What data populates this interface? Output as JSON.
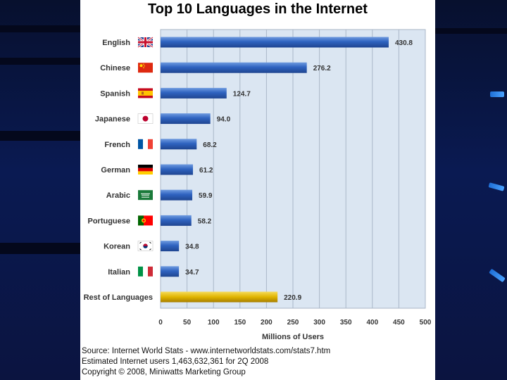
{
  "colors": {
    "bar": "#2f63c0",
    "rest_bar": "#e0b400",
    "plot_bg": "#dbe6f2"
  },
  "chart_data": {
    "type": "bar",
    "orientation": "horizontal",
    "title": "Top 10 Languages in the Internet",
    "xlabel": "Millions of Users",
    "xlim": [
      0,
      500
    ],
    "xticks": [
      0,
      50,
      100,
      150,
      200,
      250,
      300,
      350,
      400,
      450,
      500
    ],
    "grid": true,
    "categories": [
      "English",
      "Chinese",
      "Spanish",
      "Japanese",
      "French",
      "German",
      "Arabic",
      "Portuguese",
      "Korean",
      "Italian",
      "Rest of Languages"
    ],
    "flag_icons": [
      "uk-flag-icon",
      "china-flag-icon",
      "spain-flag-icon",
      "japan-flag-icon",
      "france-flag-icon",
      "germany-flag-icon",
      "saudi-flag-icon",
      "portugal-flag-icon",
      "korea-flag-icon",
      "italy-flag-icon",
      ""
    ],
    "values": [
      430.8,
      276.2,
      124.7,
      94.0,
      68.2,
      61.2,
      59.9,
      58.2,
      34.8,
      34.7,
      220.9
    ],
    "value_labels": [
      "430.8",
      "276.2",
      "124.7",
      "94.0",
      "68.2",
      "61.2",
      "59.9",
      "58.2",
      "34.8",
      "34.7",
      "220.9"
    ]
  },
  "footer": {
    "source": "Source: Internet World Stats - www.internetworldstats.com/stats7.htm",
    "estimate": "Estimated Internet users 1,463,632,361 for 2Q 2008",
    "copyright": "Copyright © 2008, Miniwatts Marketing Group"
  }
}
